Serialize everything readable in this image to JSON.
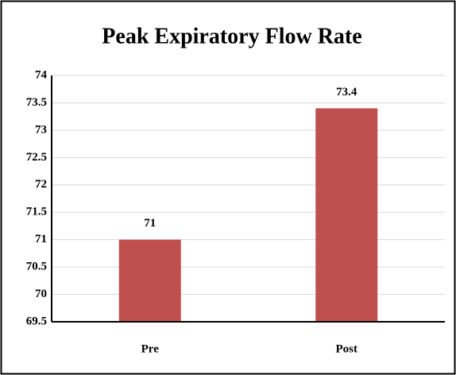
{
  "chart_data": {
    "type": "bar",
    "title": "Peak Expiratory Flow Rate",
    "categories": [
      "Pre",
      "Post"
    ],
    "values": [
      71,
      73.4
    ],
    "color": "#c0504d",
    "ylim": [
      69.5,
      74
    ],
    "yticks": [
      69.5,
      70,
      70.5,
      71,
      71.5,
      72,
      72.5,
      73,
      73.5,
      74
    ],
    "grid": true
  }
}
